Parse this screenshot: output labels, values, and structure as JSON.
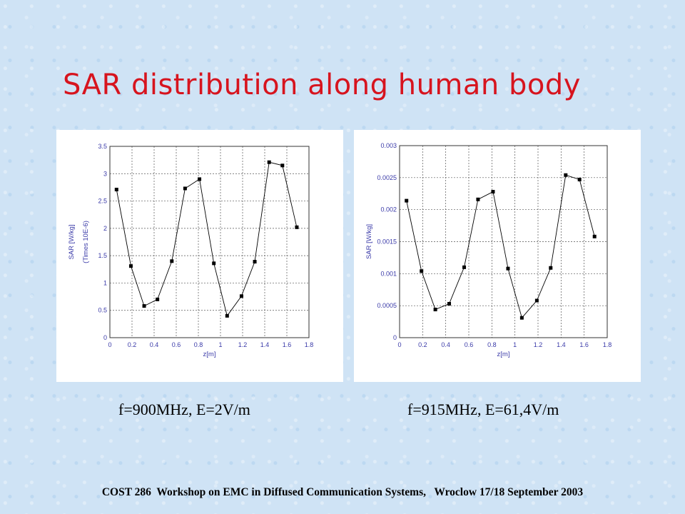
{
  "slide": {
    "title": "SAR distribution along human body",
    "footer": "COST 286  Workshop on EMC in Diffused Communication Systems,   Wroclow 17/18 September 2003"
  },
  "chart_data": [
    {
      "type": "line",
      "caption": "f=900MHz, E=2V/m",
      "xlabel": "z[m]",
      "ylabel": "SAR [W/kg]",
      "ylabel2": "(Times 10E-6)",
      "xlim": [
        0,
        1.8
      ],
      "ylim": [
        0,
        3.5
      ],
      "xticks": [
        "0",
        "0.2",
        "0.4",
        "0.6",
        "0.8",
        "1",
        "1.2",
        "1.4",
        "1.6",
        "1.8"
      ],
      "yticks": [
        "0",
        "0.5",
        "1",
        "1.5",
        "2",
        "2.5",
        "3",
        "3.5"
      ],
      "grid": true,
      "line_color": "#000000",
      "x": [
        0.06,
        0.19,
        0.31,
        0.43,
        0.56,
        0.68,
        0.81,
        0.94,
        1.06,
        1.19,
        1.31,
        1.44,
        1.56,
        1.69
      ],
      "y": [
        2.71,
        1.31,
        0.58,
        0.7,
        1.4,
        2.73,
        2.9,
        1.36,
        0.4,
        0.76,
        1.39,
        3.21,
        3.15,
        2.02
      ]
    },
    {
      "type": "line",
      "caption": "f=915MHz, E=61,4V/m",
      "xlabel": "z[m]",
      "ylabel": "SAR [W/kg]",
      "ylabel2": "",
      "xlim": [
        0,
        1.8
      ],
      "ylim": [
        0,
        0.003
      ],
      "xticks": [
        "0",
        "0.2",
        "0.4",
        "0.6",
        "0.8",
        "1",
        "1.2",
        "1.4",
        "1.6",
        "1.8"
      ],
      "yticks": [
        "0",
        "0.0005",
        "0.001",
        "0.0015",
        "0.002",
        "0.0025",
        "0.003"
      ],
      "grid": true,
      "line_color": "#000000",
      "x": [
        0.06,
        0.19,
        0.31,
        0.43,
        0.56,
        0.68,
        0.81,
        0.94,
        1.06,
        1.19,
        1.31,
        1.44,
        1.56,
        1.69
      ],
      "y": [
        0.00214,
        0.00104,
        0.00044,
        0.00053,
        0.0011,
        0.00216,
        0.00228,
        0.00108,
        0.00031,
        0.00058,
        0.00109,
        0.00254,
        0.00247,
        0.00158
      ]
    }
  ]
}
